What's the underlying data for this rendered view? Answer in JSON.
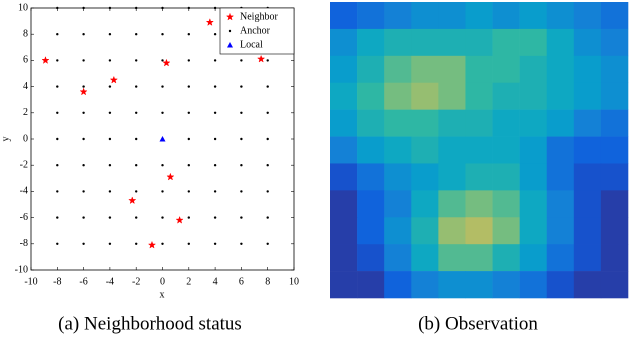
{
  "chart_data": [
    {
      "type": "scatter",
      "caption": "(a) Neighborhood status",
      "xlabel": "x",
      "ylabel": "y",
      "xlim": [
        -10,
        10
      ],
      "ylim": [
        -10,
        10
      ],
      "xticks": [
        -10,
        -8,
        -6,
        -4,
        -2,
        0,
        2,
        4,
        6,
        8,
        10
      ],
      "yticks": [
        -10,
        -8,
        -6,
        -4,
        -2,
        0,
        2,
        4,
        6,
        8,
        10
      ],
      "legend": "upper right",
      "series": [
        {
          "name": "Neighbor",
          "marker": "star",
          "color": "#ff0000",
          "x": [
            -8.9,
            -6,
            -3.7,
            0.3,
            3.6,
            7.5,
            0.6,
            -2.3,
            1.3,
            -0.8
          ],
          "values": [
            6,
            3.6,
            4.5,
            5.8,
            8.9,
            6.1,
            -2.9,
            -4.7,
            -6.2,
            -8.1
          ]
        },
        {
          "name": "Anchor",
          "marker": "dot",
          "color": "#000000",
          "grid_x": [
            -8,
            -6,
            -4,
            -2,
            0,
            2,
            4,
            6,
            8
          ],
          "grid_y": [
            -8,
            -6,
            -4,
            -2,
            0,
            2,
            4,
            6,
            8,
            10
          ]
        },
        {
          "name": "Local",
          "marker": "triangle",
          "color": "#0000ff",
          "x": [
            0
          ],
          "values": [
            0
          ]
        }
      ]
    },
    {
      "type": "heatmap",
      "caption": "(b) Observation",
      "clim": [
        0,
        1
      ],
      "colormap": [
        "#352a87",
        "#0f5cdd",
        "#1481d6",
        "#06a4ca",
        "#2eb7a4",
        "#87bf77",
        "#d1bb59",
        "#fec832",
        "#f9fb0e"
      ],
      "values": [
        [
          0.15,
          0.2,
          0.25,
          0.3,
          0.3,
          0.35,
          0.3,
          0.35,
          0.3,
          0.25,
          0.2
        ],
        [
          0.3,
          0.4,
          0.45,
          0.45,
          0.45,
          0.45,
          0.5,
          0.5,
          0.4,
          0.3,
          0.25
        ],
        [
          0.35,
          0.45,
          0.55,
          0.6,
          0.6,
          0.5,
          0.5,
          0.45,
          0.4,
          0.35,
          0.3
        ],
        [
          0.4,
          0.5,
          0.6,
          0.65,
          0.6,
          0.5,
          0.45,
          0.45,
          0.4,
          0.35,
          0.3
        ],
        [
          0.35,
          0.45,
          0.5,
          0.5,
          0.45,
          0.45,
          0.4,
          0.4,
          0.35,
          0.25,
          0.2
        ],
        [
          0.25,
          0.35,
          0.4,
          0.45,
          0.4,
          0.4,
          0.4,
          0.35,
          0.2,
          0.15,
          0.15
        ],
        [
          0.1,
          0.2,
          0.3,
          0.35,
          0.4,
          0.45,
          0.45,
          0.35,
          0.2,
          0.1,
          0.1
        ],
        [
          0.05,
          0.15,
          0.25,
          0.4,
          0.55,
          0.6,
          0.55,
          0.4,
          0.25,
          0.1,
          0.05
        ],
        [
          0.05,
          0.15,
          0.3,
          0.45,
          0.65,
          0.7,
          0.6,
          0.4,
          0.25,
          0.1,
          0.05
        ],
        [
          0.05,
          0.1,
          0.25,
          0.4,
          0.55,
          0.55,
          0.45,
          0.35,
          0.2,
          0.1,
          0.05
        ],
        [
          0.05,
          0.05,
          0.15,
          0.25,
          0.3,
          0.3,
          0.25,
          0.2,
          0.1,
          0.05,
          0.05
        ]
      ]
    }
  ]
}
